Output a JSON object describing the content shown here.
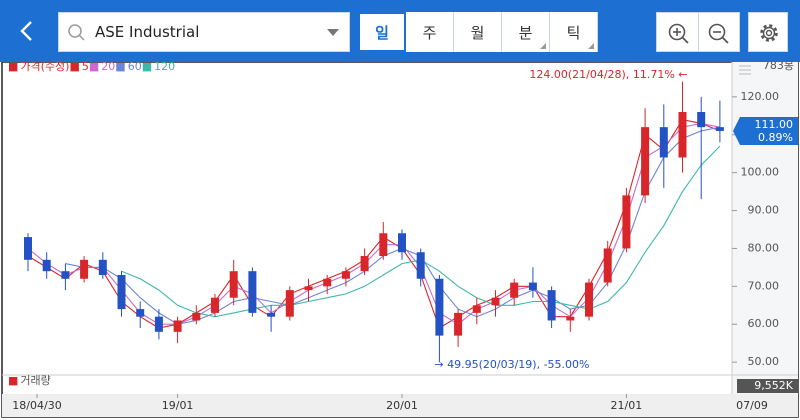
{
  "toolbar": {
    "search": "ASE Industrial",
    "tabs": [
      "일",
      "주",
      "월",
      "분",
      "틱"
    ],
    "selected_tab": 0
  },
  "chart_data": {
    "type": "candlestick",
    "legend": [
      "가격(수정)"
    ],
    "bar_count": "783봉",
    "categories": [
      "18/04/30",
      null,
      null,
      null,
      null,
      null,
      null,
      null,
      "19/01",
      null,
      null,
      null,
      null,
      null,
      null,
      null,
      null,
      null,
      null,
      null,
      "20/01",
      null,
      null,
      null,
      null,
      null,
      null,
      null,
      null,
      null,
      null,
      null,
      "21/01",
      null,
      null,
      null,
      null,
      null
    ],
    "end_date": "07/09",
    "open": [
      83,
      77,
      74,
      72,
      77,
      73,
      64,
      62,
      58,
      61,
      63,
      67,
      74,
      63,
      62,
      69,
      70,
      72,
      74,
      78,
      84,
      79,
      72,
      57,
      63,
      65,
      67,
      71,
      69,
      61,
      62,
      71,
      80,
      94,
      112,
      104,
      116,
      112
    ],
    "high": [
      84,
      79,
      76,
      78,
      79,
      74,
      66,
      64,
      62,
      65,
      68,
      77,
      75,
      65,
      70,
      72,
      73,
      75,
      80,
      87,
      85,
      80,
      73,
      64,
      67,
      69,
      72,
      75,
      70,
      64,
      72,
      82,
      96,
      117,
      118,
      124,
      120,
      119
    ],
    "low": [
      74,
      72,
      69,
      71,
      72,
      62,
      59,
      56,
      55,
      60,
      62,
      65,
      62,
      58,
      61,
      66,
      68,
      70,
      73,
      77,
      77,
      70,
      49.95,
      54,
      60,
      62,
      65,
      67,
      59,
      58,
      61,
      70,
      79,
      92,
      96,
      100,
      93,
      108
    ],
    "close": [
      77,
      74,
      72,
      77,
      73,
      64,
      62,
      58,
      61,
      63,
      67,
      74,
      63,
      62,
      69,
      70,
      72,
      74,
      78,
      84,
      79,
      72,
      57,
      63,
      65,
      67,
      71,
      69,
      61,
      62,
      71,
      80,
      94,
      112,
      104,
      116,
      112,
      111
    ],
    "up_color": "#d8262a",
    "down_color": "#2252c4",
    "series": [
      {
        "name": "5",
        "color": "#d8262a",
        "values": [
          78,
          75,
          72,
          76,
          74,
          66,
          62,
          59,
          60,
          63,
          66,
          73,
          65,
          62,
          68,
          70,
          72,
          74,
          77,
          83,
          80,
          73,
          59,
          62,
          65,
          67,
          70,
          70,
          62,
          62,
          70,
          79,
          92,
          110,
          106,
          114,
          113,
          111
        ]
      },
      {
        "name": "20",
        "color": "#c76bd0",
        "values": [
          80,
          76,
          73,
          75,
          75,
          69,
          63,
          60,
          60,
          62,
          65,
          70,
          68,
          63,
          66,
          69,
          71,
          73,
          76,
          81,
          81,
          75,
          63,
          60,
          64,
          66,
          69,
          70,
          65,
          62,
          67,
          76,
          88,
          104,
          107,
          112,
          113,
          112
        ]
      },
      {
        "name": "60",
        "color": "#6b86d6",
        "values": [
          null,
          null,
          76,
          75,
          75,
          72,
          67,
          63,
          60,
          61,
          63,
          66,
          67,
          66,
          65,
          67,
          69,
          71,
          74,
          78,
          80,
          78,
          70,
          64,
          62,
          64,
          67,
          69,
          67,
          64,
          65,
          71,
          81,
          95,
          104,
          109,
          111,
          112
        ]
      },
      {
        "name": "120",
        "color": "#3fb8a6",
        "values": [
          null,
          null,
          null,
          null,
          null,
          74,
          72,
          69,
          65,
          63,
          62,
          63,
          64,
          65,
          65,
          66,
          67,
          68,
          70,
          73,
          76,
          77,
          74,
          70,
          67,
          65,
          65,
          66,
          66,
          65,
          64,
          66,
          71,
          79,
          86,
          95,
          102,
          107
        ]
      }
    ],
    "ylim": [
      47.4,
      128.4
    ],
    "yticks": [
      {
        "value": 50,
        "label": "50.00"
      },
      {
        "value": 60,
        "label": "60.00"
      },
      {
        "value": 70,
        "label": "70.00"
      },
      {
        "value": 80,
        "label": "80.00"
      },
      {
        "value": 90,
        "label": "90.00"
      },
      {
        "value": 100,
        "label": "100.00"
      },
      {
        "value": 110,
        "label": "110.00"
      },
      {
        "value": 120,
        "label": "120.00"
      }
    ],
    "last_price": {
      "value": 111,
      "label": "111.00"
    },
    "last_change": "0.89%",
    "annotations": [
      {
        "text": "124.00(21/04/28), 11.71% ←",
        "index": 35,
        "value": 124
      },
      {
        "text": "→ 49.95(20/03/19), -55.00%",
        "index": 22,
        "value": 49.95
      }
    ],
    "volume_label": "거래량",
    "volume_last": "9,552K"
  }
}
